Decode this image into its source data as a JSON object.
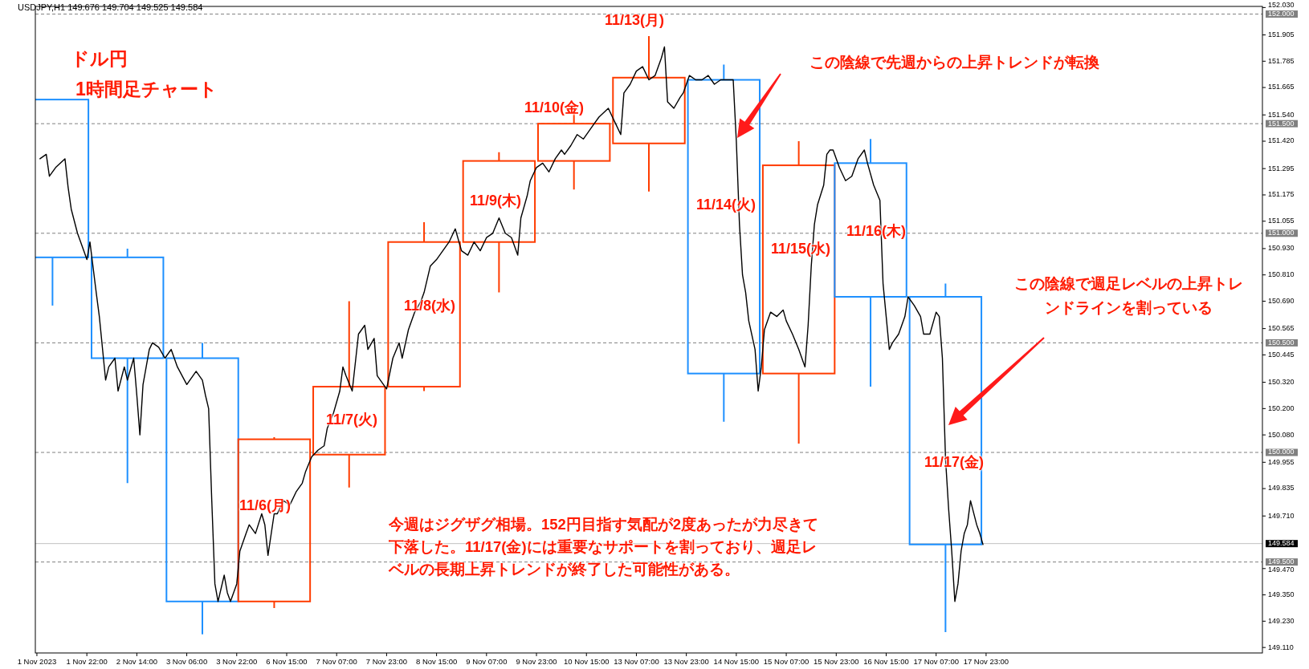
{
  "chart_data": {
    "type": "candlestick",
    "title": "ドル円",
    "subtitle": "1時間足チャート",
    "categories": [
      "1 Nov 2023",
      null,
      null,
      null,
      null,
      null,
      null,
      null,
      null,
      null,
      null,
      null,
      null,
      null,
      null,
      null,
      "1 Nov 22:00",
      null,
      null,
      null,
      null,
      null,
      null,
      null,
      null,
      null,
      null,
      null,
      null,
      null,
      null,
      null,
      "2 Nov 14:00",
      null,
      null,
      null,
      null,
      null,
      null,
      null,
      null,
      null,
      null,
      null,
      null,
      null,
      null,
      null,
      "3 Nov 06:00",
      null,
      null,
      null,
      null,
      null,
      null,
      null,
      null,
      null,
      null,
      null,
      null,
      null,
      null,
      null,
      "3 Nov 22:00",
      null,
      null,
      null,
      null,
      null,
      null,
      null,
      null,
      null,
      null,
      null,
      null,
      null,
      null,
      null,
      "6 Nov 15:00",
      null,
      null,
      null,
      null,
      null,
      null,
      null,
      null,
      null,
      null,
      null,
      null,
      null,
      null,
      null,
      "7 Nov 07:00",
      null,
      null,
      null,
      null,
      null,
      null,
      null,
      null,
      null,
      null,
      null,
      null,
      null,
      null,
      null,
      "7 Nov 23:00",
      null,
      null,
      null,
      null,
      null,
      null,
      null,
      null,
      null,
      null,
      null,
      null,
      null,
      null,
      null,
      "8 Nov 15:00",
      null,
      null,
      null,
      null,
      null,
      null,
      null,
      null,
      null,
      null,
      null,
      null,
      null,
      null,
      null,
      "9 Nov 07:00",
      null,
      null,
      null,
      null,
      null,
      null,
      null,
      null,
      null,
      null,
      null,
      null,
      null,
      null,
      null,
      "9 Nov 23:00",
      null,
      null,
      null,
      null,
      null,
      null,
      null,
      null,
      null,
      null,
      null,
      null,
      null,
      null,
      null,
      "10 Nov 15:00",
      null,
      null,
      null,
      null,
      null,
      null,
      null,
      null,
      null,
      null,
      null,
      null,
      null,
      null,
      null,
      "13 Nov 07:00",
      null,
      null,
      null,
      null,
      null,
      null,
      null,
      null,
      null,
      null,
      null,
      null,
      null,
      null,
      null,
      "13 Nov 23:00",
      null,
      null,
      null,
      null,
      null,
      null,
      null,
      null,
      null,
      null,
      null,
      null,
      null,
      null,
      null,
      "14 Nov 15:00",
      null,
      null,
      null,
      null,
      null,
      null,
      null,
      null,
      null,
      null,
      null,
      null,
      null,
      null,
      null,
      "15 Nov 07:00",
      null,
      null,
      null,
      null,
      null,
      null,
      null,
      null,
      null,
      null,
      null,
      null,
      null,
      null,
      null,
      "15 Nov 23:00",
      null,
      null,
      null,
      null,
      null,
      null,
      null,
      null,
      null,
      null,
      null,
      null,
      null,
      null,
      null,
      "16 Nov 15:00",
      null,
      null,
      null,
      null,
      null,
      null,
      null,
      null,
      null,
      null,
      null,
      null,
      null,
      null,
      null,
      "17 Nov 07:00",
      null,
      null,
      null,
      null,
      null,
      null,
      null,
      null,
      null,
      null,
      null,
      null,
      null,
      null,
      null,
      "17 Nov 23:00",
      null,
      null,
      null,
      null,
      null,
      null,
      null,
      null,
      null,
      null,
      null,
      null,
      null,
      null,
      null,
      null,
      null,
      null,
      null,
      null,
      null,
      null,
      null,
      null,
      null,
      null,
      null,
      null,
      null,
      null,
      null,
      null,
      null,
      null,
      null,
      null,
      null,
      null,
      null,
      null,
      null,
      null,
      null,
      null,
      null,
      null,
      null,
      null,
      null,
      null,
      null,
      null,
      null,
      null,
      null,
      null,
      null,
      null,
      null,
      null,
      null,
      null,
      null,
      null,
      null,
      null,
      null,
      null,
      null,
      null,
      null,
      null,
      null,
      null,
      null,
      null,
      null,
      null,
      null,
      null,
      null,
      null,
      null,
      null,
      null,
      null,
      null,
      null
    ],
    "ylim": [
      149.085,
      152.035
    ],
    "yticks": [
      {
        "value": 152.03,
        "label": "152.030"
      },
      {
        "value": 151.905,
        "label": "151.905"
      },
      {
        "value": 151.785,
        "label": "151.785"
      },
      {
        "value": 151.665,
        "label": "151.665"
      },
      {
        "value": 151.54,
        "label": "151.540"
      },
      {
        "value": 151.42,
        "label": "151.420"
      },
      {
        "value": 151.295,
        "label": "151.295"
      },
      {
        "value": 151.175,
        "label": "151.175"
      },
      {
        "value": 151.055,
        "label": "151.055"
      },
      {
        "value": 150.93,
        "label": "150.930"
      },
      {
        "value": 150.81,
        "label": "150.810"
      },
      {
        "value": 150.69,
        "label": "150.690"
      },
      {
        "value": 150.565,
        "label": "150.565"
      },
      {
        "value": 150.445,
        "label": "150.445"
      },
      {
        "value": 150.32,
        "label": "150.320"
      },
      {
        "value": 150.2,
        "label": "150.200"
      },
      {
        "value": 150.08,
        "label": "150.080"
      },
      {
        "value": 149.955,
        "label": "149.955"
      },
      {
        "value": 149.835,
        "label": "149.835"
      },
      {
        "value": 149.71,
        "label": "149.710"
      },
      {
        "value": 149.47,
        "label": "149.470"
      },
      {
        "value": 149.35,
        "label": "149.350"
      },
      {
        "value": 149.23,
        "label": "149.230"
      },
      {
        "value": 149.11,
        "label": "149.110"
      }
    ],
    "ref_lines": [
      {
        "axis": "y",
        "value": 152,
        "label": "152.000",
        "color": "#808080",
        "line_style": "dashed"
      },
      {
        "axis": "y",
        "value": 151.5,
        "label": "151.500",
        "color": "#808080",
        "line_style": "dashed"
      },
      {
        "axis": "y",
        "value": 151,
        "label": "151.000",
        "color": "#808080",
        "line_style": "dashed"
      },
      {
        "axis": "y",
        "value": 150.5,
        "label": "150.500",
        "color": "#808080",
        "line_style": "dashed"
      },
      {
        "axis": "y",
        "value": 150,
        "label": "150.000",
        "color": "#808080",
        "line_style": "dashed"
      },
      {
        "axis": "y",
        "value": 149.5,
        "label": "149.500",
        "color": "#808080",
        "line_style": "dashed"
      },
      {
        "axis": "y",
        "value": 149.584,
        "label": "149.584",
        "color": "#c0c0c0",
        "line_style": "solid"
      }
    ],
    "series": [
      {
        "type": "line",
        "color": "#000000",
        "values": [
          null,
          151.34,
          null,
          151.36,
          151.26,
          null,
          151.3,
          null,
          null,
          151.34,
          151.21,
          151.11,
          null,
          151.0,
          null,
          150.92,
          150.88,
          150.96,
          null,
          150.73,
          150.62,
          null,
          150.33,
          150.39,
          null,
          150.43,
          150.28,
          null,
          150.39,
          150.33,
          null,
          150.43,
          150.26,
          150.08,
          150.31,
          null,
          150.47,
          150.5,
          null,
          150.48,
          null,
          150.43,
          null,
          150.47,
          null,
          150.39,
          null,
          null,
          150.31,
          null,
          null,
          150.37,
          null,
          150.33,
          150.26,
          150.2,
          149.78,
          149.4,
          149.32,
          null,
          149.44,
          149.36,
          149.32,
          null,
          149.4,
          149.55,
          null,
          149.63,
          149.67,
          null,
          149.63,
          null,
          149.72,
          149.67,
          149.53,
          null,
          149.72,
          149.72,
          null,
          149.78,
          null,
          149.76,
          null,
          149.82,
          null,
          149.86,
          149.91,
          null,
          149.98,
          null,
          150.01,
          null,
          150.03,
          150.11,
          null,
          150.18,
          null,
          150.28,
          150.39,
          150.35,
          null,
          150.28,
          null,
          150.54,
          null,
          150.58,
          150.47,
          null,
          150.52,
          150.35,
          null,
          150.31,
          150.29,
          null,
          150.43,
          null,
          150.5,
          150.43,
          null,
          150.56,
          null,
          150.64,
          null,
          150.69,
          150.73,
          null,
          150.85,
          null,
          150.88,
          null,
          150.92,
          null,
          150.96,
          null,
          151.02,
          null,
          150.92,
          null,
          150.9,
          null,
          150.96,
          null,
          150.92,
          null,
          150.98,
          null,
          151.0,
          null,
          151.07,
          null,
          151.0,
          null,
          150.98,
          null,
          150.9,
          151.07,
          null,
          151.17,
          151.24,
          null,
          151.3,
          null,
          151.32,
          null,
          151.28,
          null,
          151.34,
          null,
          151.38,
          151.36,
          null,
          151.4,
          null,
          151.45,
          null,
          151.43,
          null,
          null,
          151.49,
          null,
          151.53,
          null,
          null,
          151.57,
          null,
          151.51,
          null,
          151.45,
          151.64,
          null,
          151.68,
          null,
          151.74,
          null,
          151.76,
          null,
          151.7,
          null,
          151.72,
          null,
          151.8,
          151.85,
          151.6,
          null,
          151.57,
          null,
          151.62,
          151.64,
          null,
          151.72,
          null,
          151.7,
          null,
          151.7,
          null,
          151.72,
          null,
          151.68,
          null,
          151.7,
          null,
          151.7,
          null,
          151.7,
          151.42,
          151.04,
          150.81,
          150.73,
          150.6,
          null,
          150.47,
          150.28,
          150.39,
          150.56,
          null,
          150.64,
          null,
          150.62,
          null,
          150.65,
          150.6,
          null,
          150.54,
          null,
          150.47,
          null,
          150.39,
          150.58,
          150.85,
          151.04,
          151.13,
          null,
          151.22,
          151.36,
          151.38,
          151.38,
          null,
          151.3,
          null,
          151.24,
          null,
          151.26,
          null,
          151.34,
          null,
          151.38,
          151.32,
          null,
          151.22,
          null,
          151.15,
          150.77,
          150.62,
          150.47,
          150.5,
          null,
          150.54,
          null,
          150.62,
          150.71,
          null,
          150.67,
          null,
          150.62,
          150.54,
          null,
          150.54,
          null,
          150.64,
          150.62,
          150.43,
          149.97,
          149.74,
          149.55,
          149.32,
          149.4,
          149.55,
          149.63,
          149.67,
          149.78,
          null,
          149.67,
          149.63,
          149.58,
          null,
          null,
          null,
          null,
          null,
          null,
          null,
          null,
          null,
          null,
          null,
          null,
          null,
          null,
          null,
          null,
          null,
          null,
          null,
          null,
          null,
          null,
          null,
          null,
          null,
          null,
          null,
          null,
          null,
          null,
          null,
          null,
          null,
          null,
          null,
          null,
          null,
          null,
          null,
          null,
          null,
          null,
          null,
          null,
          null,
          null,
          null,
          null,
          null,
          null,
          null,
          null,
          null,
          null,
          null,
          null,
          null,
          null,
          null,
          null,
          null,
          null,
          null,
          null,
          null,
          null,
          null,
          null,
          null,
          null,
          null,
          null,
          null,
          null,
          null,
          null,
          null,
          null,
          null,
          null,
          null,
          null,
          null,
          null,
          null,
          null,
          null,
          null,
          null
        ]
      },
      {
        "type": "candlestick",
        "ohlc": [
          null,
          null,
          null,
          null,
          null,
          [
            151.61,
            151.61,
            150.67,
            150.89
          ],
          null,
          null,
          null,
          null,
          null,
          null,
          null,
          null,
          null,
          null,
          null,
          null,
          null,
          null,
          null,
          null,
          null,
          null,
          null,
          null,
          null,
          null,
          null,
          [
            150.89,
            150.93,
            149.86,
            150.43
          ],
          null,
          null,
          null,
          null,
          null,
          null,
          null,
          null,
          null,
          null,
          null,
          null,
          null,
          null,
          null,
          null,
          null,
          null,
          null,
          null,
          null,
          null,
          null,
          [
            150.43,
            150.5,
            149.17,
            149.32
          ],
          null,
          null,
          null,
          null,
          null,
          null,
          null,
          null,
          null,
          null,
          null,
          null,
          null,
          null,
          null,
          null,
          null,
          null,
          null,
          null,
          null,
          null,
          [
            149.32,
            150.07,
            149.29,
            150.06
          ],
          null,
          null,
          null,
          null,
          null,
          null,
          null,
          null,
          null,
          null,
          null,
          null,
          null,
          null,
          null,
          null,
          null,
          null,
          null,
          null,
          null,
          null,
          null,
          [
            149.99,
            150.69,
            149.84,
            150.3
          ],
          null,
          null,
          null,
          null,
          null,
          null,
          null,
          null,
          null,
          null,
          null,
          null,
          null,
          null,
          null,
          null,
          null,
          null,
          null,
          null,
          null,
          null,
          null,
          [
            150.3,
            151.05,
            150.28,
            150.96
          ],
          null,
          null,
          null,
          null,
          null,
          null,
          null,
          null,
          null,
          null,
          null,
          null,
          null,
          null,
          null,
          null,
          null,
          null,
          null,
          null,
          null,
          null,
          null,
          [
            150.96,
            151.37,
            150.73,
            151.33
          ],
          null,
          null,
          null,
          null,
          null,
          null,
          null,
          null,
          null,
          null,
          null,
          null,
          null,
          null,
          null,
          null,
          null,
          null,
          null,
          null,
          null,
          null,
          null,
          [
            151.33,
            151.59,
            151.2,
            151.5
          ],
          null,
          null,
          null,
          null,
          null,
          null,
          null,
          null,
          null,
          null,
          null,
          null,
          null,
          null,
          null,
          null,
          null,
          null,
          null,
          null,
          null,
          null,
          null,
          [
            151.41,
            151.9,
            151.19,
            151.71
          ],
          null,
          null,
          null,
          null,
          null,
          null,
          null,
          null,
          null,
          null,
          null,
          null,
          null,
          null,
          null,
          null,
          null,
          null,
          null,
          null,
          null,
          null,
          null,
          [
            151.7,
            151.77,
            150.14,
            150.36
          ],
          null,
          null,
          null,
          null,
          null,
          null,
          null,
          null,
          null,
          null,
          null,
          null,
          null,
          null,
          null,
          null,
          null,
          null,
          null,
          null,
          null,
          null,
          null,
          [
            150.36,
            151.42,
            150.04,
            151.31
          ],
          null,
          null,
          null,
          null,
          null,
          null,
          null,
          null,
          null,
          null,
          null,
          null,
          null,
          null,
          null,
          null,
          null,
          null,
          null,
          null,
          null,
          null,
          [
            151.32,
            151.43,
            150.3,
            150.71
          ],
          null,
          null,
          null,
          null,
          null,
          null,
          null,
          null,
          null,
          null,
          null,
          null,
          null,
          null,
          null,
          null,
          null,
          null,
          null,
          null,
          null,
          null,
          null,
          [
            150.71,
            150.77,
            149.18,
            149.58
          ],
          null,
          null,
          null,
          null,
          null,
          null,
          null,
          null,
          null,
          null,
          null,
          null,
          null,
          null,
          null,
          null,
          null,
          null,
          null,
          null,
          null,
          null,
          null,
          null,
          null,
          null,
          null,
          null,
          null,
          null,
          null,
          null,
          null,
          null,
          null,
          null,
          null,
          null,
          null,
          null,
          null,
          null,
          null,
          null,
          null,
          null,
          null,
          null,
          null,
          null,
          null,
          null,
          null,
          null,
          null,
          null,
          null,
          null,
          null,
          null,
          null,
          null,
          null,
          null,
          null,
          null,
          null,
          null,
          null,
          null,
          null,
          null,
          null,
          null,
          null,
          null,
          null,
          null,
          null,
          null,
          null,
          null,
          null,
          null,
          null,
          null,
          null,
          null,
          null,
          null,
          null,
          null,
          null,
          null,
          null,
          null,
          null,
          null,
          null,
          null,
          null
        ],
        "colors": [
          null,
          null,
          null,
          null,
          null,
          "#1e90ff",
          null,
          null,
          null,
          null,
          null,
          null,
          null,
          null,
          null,
          null,
          null,
          null,
          null,
          null,
          null,
          null,
          null,
          null,
          null,
          null,
          null,
          null,
          null,
          "#1e90ff",
          null,
          null,
          null,
          null,
          null,
          null,
          null,
          null,
          null,
          null,
          null,
          null,
          null,
          null,
          null,
          null,
          null,
          null,
          null,
          null,
          null,
          null,
          null,
          "#1e90ff",
          null,
          null,
          null,
          null,
          null,
          null,
          null,
          null,
          null,
          null,
          null,
          null,
          null,
          null,
          null,
          null,
          null,
          null,
          null,
          null,
          null,
          null,
          "#ff3c00",
          null,
          null,
          null,
          null,
          null,
          null,
          null,
          null,
          null,
          null,
          null,
          null,
          null,
          null,
          null,
          null,
          null,
          null,
          null,
          null,
          null,
          null,
          null,
          "#ff3c00",
          null,
          null,
          null,
          null,
          null,
          null,
          null,
          null,
          null,
          null,
          null,
          null,
          null,
          null,
          null,
          null,
          null,
          null,
          null,
          null,
          null,
          null,
          null,
          "#ff3c00",
          null,
          null,
          null,
          null,
          null,
          null,
          null,
          null,
          null,
          null,
          null,
          null,
          null,
          null,
          null,
          null,
          null,
          null,
          null,
          null,
          null,
          null,
          null,
          "#ff3c00",
          null,
          null,
          null,
          null,
          null,
          null,
          null,
          null,
          null,
          null,
          null,
          null,
          null,
          null,
          null,
          null,
          null,
          null,
          null,
          null,
          null,
          null,
          null,
          "#ff3c00",
          null,
          null,
          null,
          null,
          null,
          null,
          null,
          null,
          null,
          null,
          null,
          null,
          null,
          null,
          null,
          null,
          null,
          null,
          null,
          null,
          null,
          null,
          null,
          "#ff3c00",
          null,
          null,
          null,
          null,
          null,
          null,
          null,
          null,
          null,
          null,
          null,
          null,
          null,
          null,
          null,
          null,
          null,
          null,
          null,
          null,
          null,
          null,
          null,
          "#1e90ff",
          null,
          null,
          null,
          null,
          null,
          null,
          null,
          null,
          null,
          null,
          null,
          null,
          null,
          null,
          null,
          null,
          null,
          null,
          null,
          null,
          null,
          null,
          null,
          "#ff3c00",
          null,
          null,
          null,
          null,
          null,
          null,
          null,
          null,
          null,
          null,
          null,
          null,
          null,
          null,
          null,
          null,
          null,
          null,
          null,
          null,
          null,
          null,
          "#1e90ff",
          null,
          null,
          null,
          null,
          null,
          null,
          null,
          null,
          null,
          null,
          null,
          null,
          null,
          null,
          null,
          null,
          null,
          null,
          null,
          null,
          null,
          null,
          null,
          "#1e90ff",
          null,
          null,
          null,
          null,
          null,
          null,
          null,
          null,
          null,
          null,
          null,
          null,
          null,
          null,
          null,
          null,
          null,
          null,
          null,
          null,
          null,
          null,
          null,
          null,
          null,
          null,
          null,
          null,
          null,
          null,
          null,
          null,
          null,
          null,
          null,
          null,
          null,
          null,
          null,
          null,
          null,
          null,
          null,
          null,
          null,
          null,
          null,
          null,
          null,
          null,
          null,
          null,
          null,
          null,
          null,
          null,
          null,
          null,
          null,
          null,
          null,
          null,
          null,
          null,
          null,
          null,
          null,
          null,
          null,
          null,
          null,
          null,
          null,
          null,
          null,
          null,
          null,
          null,
          null,
          null,
          null,
          null,
          null,
          null,
          null,
          null,
          null,
          null,
          null,
          null,
          null,
          null,
          null,
          null,
          null,
          null,
          null,
          null,
          null,
          null,
          null
        ]
      }
    ],
    "annotations": [
      "USDJPY,H1 149.676 149.704 149.525 149.584",
      "今週はジグザグ相場。152円目指す気配が2度あったが力尽きて下落した。11/17(金)には重要なサポートを割っており、週足レベルの長期上昇トレンドが終了した可能性がある。",
      "11/6(月)",
      "11/7(火)",
      "11/8(水)",
      "11/9(木)",
      "11/10(金)",
      "11/13(月)",
      "11/14(火)",
      "11/15(水)",
      "11/16(木)",
      "11/17(金)",
      "この陰線で先週からの上昇トレンドが転換",
      "この陰線で週足レベルの上昇トレンドラインを割っている"
    ]
  }
}
